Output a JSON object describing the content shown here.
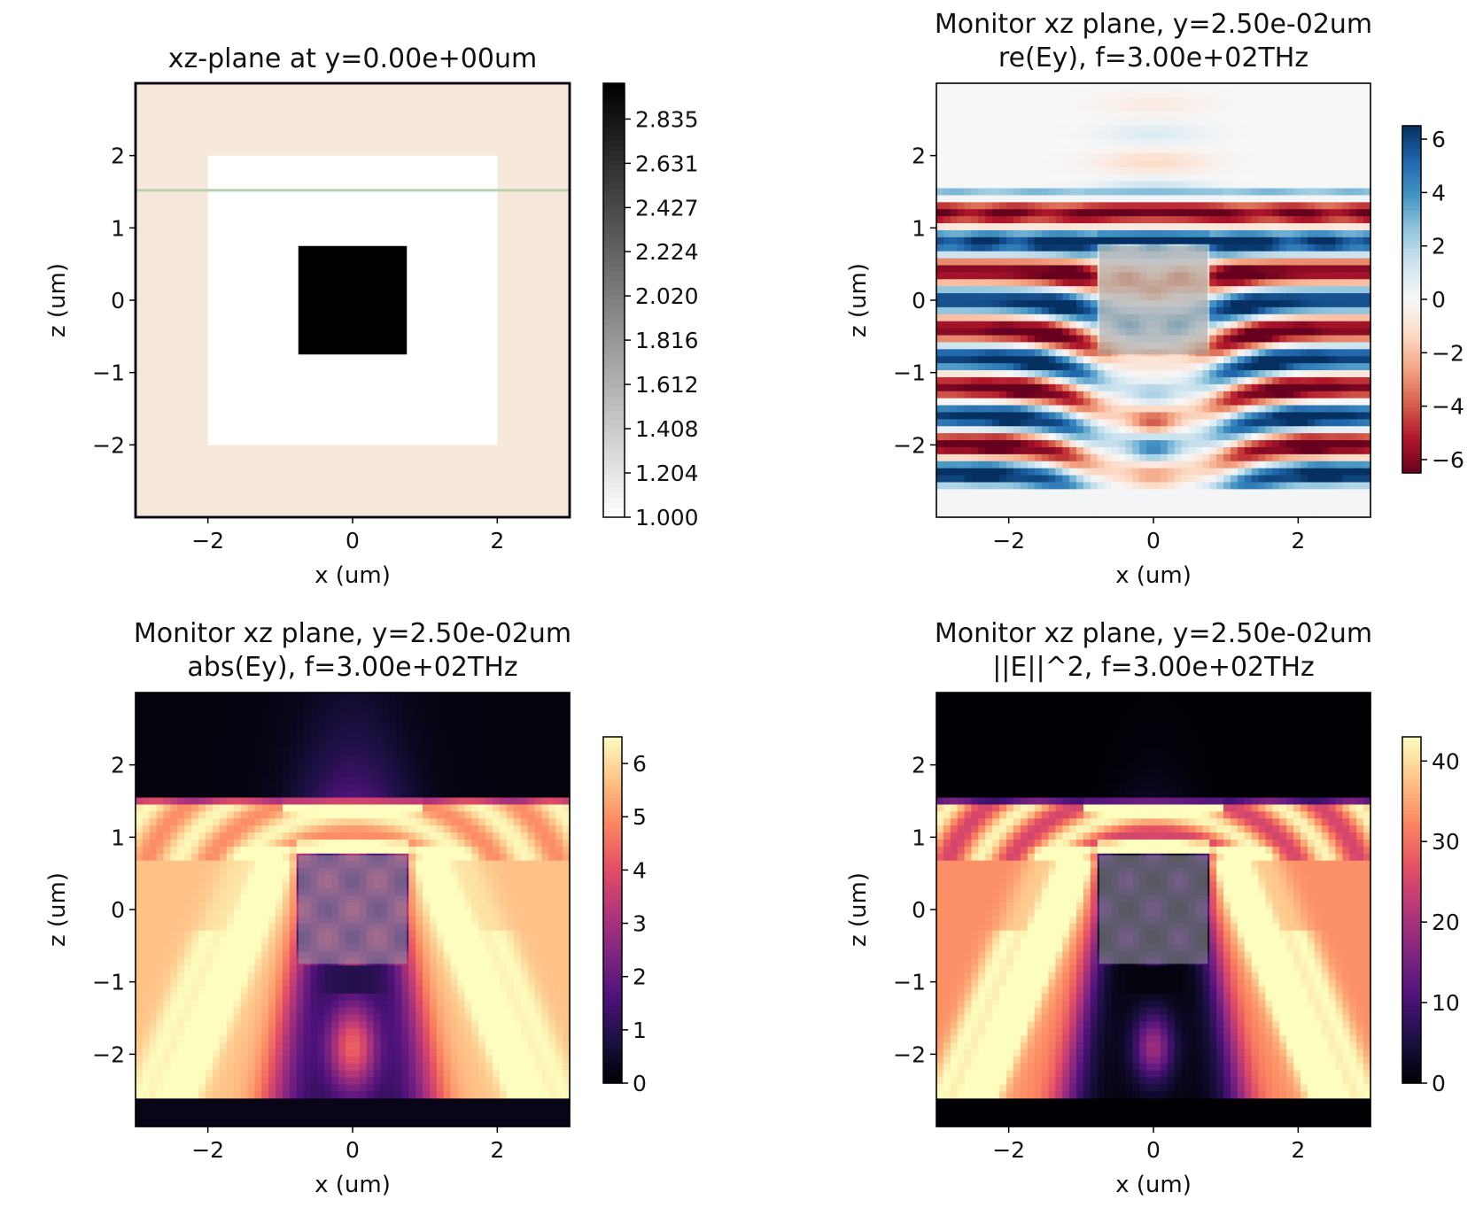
{
  "chart_data": [
    {
      "type": "heatmap",
      "title": [
        "xz-plane at y=0.00e+00um"
      ],
      "xlabel": "x (um)",
      "ylabel": "z (um)",
      "xlim": [
        -3,
        3
      ],
      "ylim": [
        -3,
        3
      ],
      "xticks": [
        {
          "v": -2,
          "label": "−2"
        },
        {
          "v": 0,
          "label": "0"
        },
        {
          "v": 2,
          "label": "2"
        }
      ],
      "yticks": [
        {
          "v": -2,
          "label": "−2"
        },
        {
          "v": -1,
          "label": "−1"
        },
        {
          "v": 0,
          "label": "0"
        },
        {
          "v": 1,
          "label": "1"
        },
        {
          "v": 2,
          "label": "2"
        }
      ],
      "colorbar": {
        "colormap": "Greys",
        "range": [
          1.0,
          3.0
        ],
        "ticks": [
          {
            "v": 1.0,
            "label": "1.000"
          },
          {
            "v": 1.204,
            "label": "1.204"
          },
          {
            "v": 1.408,
            "label": "1.408"
          },
          {
            "v": 1.612,
            "label": "1.612"
          },
          {
            "v": 1.816,
            "label": "1.816"
          },
          {
            "v": 2.02,
            "label": "2.020"
          },
          {
            "v": 2.224,
            "label": "2.224"
          },
          {
            "v": 2.427,
            "label": "2.427"
          },
          {
            "v": 2.631,
            "label": "2.631"
          },
          {
            "v": 2.835,
            "label": "2.835"
          }
        ]
      },
      "structures": {
        "background_color": "#f6e9dc",
        "border_color": "#2a1f3a",
        "medium_square": {
          "x": [
            -2,
            2
          ],
          "z": [
            -2,
            2
          ],
          "color": "#ffffff"
        },
        "scatterer_square": {
          "x": [
            -0.75,
            0.75
          ],
          "z": [
            -0.75,
            0.75
          ],
          "color": "#000000"
        },
        "source_line": {
          "z": 1.52,
          "color": "#b9cfae"
        }
      }
    },
    {
      "type": "heatmap",
      "title": [
        "Monitor xz plane, y=2.50e-02um",
        "re(Ey), f=3.00e+02THz"
      ],
      "xlabel": "x (um)",
      "ylabel": "z (um)",
      "xlim": [
        -3,
        3
      ],
      "ylim": [
        -3,
        3
      ],
      "xticks": [
        {
          "v": -2,
          "label": "−2"
        },
        {
          "v": 0,
          "label": "0"
        },
        {
          "v": 2,
          "label": "2"
        }
      ],
      "yticks": [
        {
          "v": -2,
          "label": "−2"
        },
        {
          "v": -1,
          "label": "−1"
        },
        {
          "v": 0,
          "label": "0"
        },
        {
          "v": 1,
          "label": "1"
        },
        {
          "v": 2,
          "label": "2"
        }
      ],
      "colorbar": {
        "colormap": "RdBu",
        "range": [
          -6.5,
          6.5
        ],
        "ticks": [
          {
            "v": -6,
            "label": "−6"
          },
          {
            "v": -4,
            "label": "−4"
          },
          {
            "v": -2,
            "label": "−2"
          },
          {
            "v": 0,
            "label": "0"
          },
          {
            "v": 2,
            "label": "2"
          },
          {
            "v": 4,
            "label": "4"
          },
          {
            "v": 6,
            "label": "6"
          }
        ]
      },
      "structures": {
        "scatterer_square": {
          "x": [
            -0.75,
            0.75
          ],
          "z": [
            -0.75,
            0.75
          ],
          "overlay": "#9a9a9a"
        }
      }
    },
    {
      "type": "heatmap",
      "title": [
        "Monitor xz plane, y=2.50e-02um",
        "abs(Ey), f=3.00e+02THz"
      ],
      "xlabel": "x (um)",
      "ylabel": "z (um)",
      "xlim": [
        -3,
        3
      ],
      "ylim": [
        -3,
        3
      ],
      "xticks": [
        {
          "v": -2,
          "label": "−2"
        },
        {
          "v": 0,
          "label": "0"
        },
        {
          "v": 2,
          "label": "2"
        }
      ],
      "yticks": [
        {
          "v": -2,
          "label": "−2"
        },
        {
          "v": -1,
          "label": "−1"
        },
        {
          "v": 0,
          "label": "0"
        },
        {
          "v": 1,
          "label": "1"
        },
        {
          "v": 2,
          "label": "2"
        }
      ],
      "colorbar": {
        "colormap": "magma",
        "range": [
          0,
          6.5
        ],
        "ticks": [
          {
            "v": 0,
            "label": "0"
          },
          {
            "v": 1,
            "label": "1"
          },
          {
            "v": 2,
            "label": "2"
          },
          {
            "v": 3,
            "label": "3"
          },
          {
            "v": 4,
            "label": "4"
          },
          {
            "v": 5,
            "label": "5"
          },
          {
            "v": 6,
            "label": "6"
          }
        ]
      },
      "structures": {
        "scatterer_square": {
          "x": [
            -0.75,
            0.75
          ],
          "z": [
            -0.75,
            0.75
          ],
          "overlay": "#9a9a9a"
        }
      }
    },
    {
      "type": "heatmap",
      "title": [
        "Monitor xz plane, y=2.50e-02um",
        "||E||^2, f=3.00e+02THz"
      ],
      "xlabel": "x (um)",
      "ylabel": "z (um)",
      "xlim": [
        -3,
        3
      ],
      "ylim": [
        -3,
        3
      ],
      "xticks": [
        {
          "v": -2,
          "label": "−2"
        },
        {
          "v": 0,
          "label": "0"
        },
        {
          "v": 2,
          "label": "2"
        }
      ],
      "yticks": [
        {
          "v": -2,
          "label": "−2"
        },
        {
          "v": -1,
          "label": "−1"
        },
        {
          "v": 0,
          "label": "0"
        },
        {
          "v": 1,
          "label": "1"
        },
        {
          "v": 2,
          "label": "2"
        }
      ],
      "colorbar": {
        "colormap": "magma",
        "range": [
          0,
          43
        ],
        "ticks": [
          {
            "v": 0,
            "label": "0"
          },
          {
            "v": 10,
            "label": "10"
          },
          {
            "v": 20,
            "label": "20"
          },
          {
            "v": 30,
            "label": "30"
          },
          {
            "v": 40,
            "label": "40"
          }
        ]
      },
      "structures": {
        "scatterer_square": {
          "x": [
            -0.75,
            0.75
          ],
          "z": [
            -0.75,
            0.75
          ],
          "overlay": "#9a9a9a"
        }
      }
    }
  ]
}
